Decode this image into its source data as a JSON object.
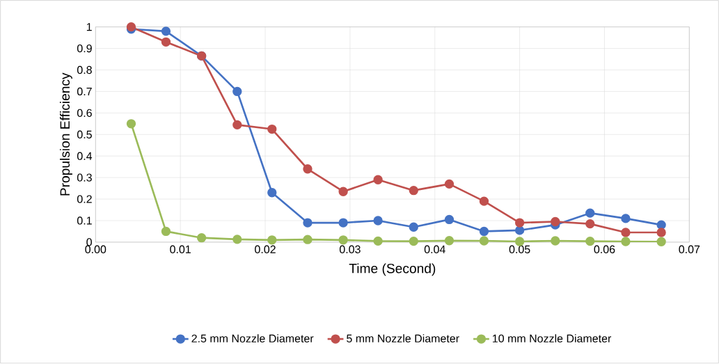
{
  "chart_data": {
    "type": "line",
    "xlabel": "Time (Second)",
    "ylabel": "Propulsion Efficiency",
    "xlim": [
      0,
      0.07
    ],
    "ylim": [
      0,
      1
    ],
    "xticks": [
      {
        "value": 0,
        "label": "0.00"
      },
      {
        "value": 0.01,
        "label": "0.01"
      },
      {
        "value": 0.02,
        "label": "0.02"
      },
      {
        "value": 0.03,
        "label": "0.03"
      },
      {
        "value": 0.04,
        "label": "0.04"
      },
      {
        "value": 0.05,
        "label": "0.05"
      },
      {
        "value": 0.06,
        "label": "0.06"
      },
      {
        "value": 0.07,
        "label": "0.07"
      }
    ],
    "yticks": [
      0,
      0.1,
      0.2,
      0.3,
      0.4,
      0.5,
      0.6,
      0.7,
      0.8,
      0.9,
      1
    ],
    "x": [
      0.0042,
      0.0083,
      0.0125,
      0.0167,
      0.0208,
      0.025,
      0.0292,
      0.0333,
      0.0375,
      0.0417,
      0.0458,
      0.05,
      0.0542,
      0.0583,
      0.0625,
      0.0667
    ],
    "series": [
      {
        "name": "2.5 mm Nozzle Diameter",
        "color": "#4472c4",
        "values": [
          0.99,
          0.98,
          0.865,
          0.7,
          0.23,
          0.09,
          0.09,
          0.1,
          0.07,
          0.105,
          0.05,
          0.055,
          0.08,
          0.135,
          0.11,
          0.08
        ]
      },
      {
        "name": "5 mm Nozzle Diameter",
        "color": "#c0504d",
        "values": [
          1.0,
          0.93,
          0.865,
          0.545,
          0.525,
          0.34,
          0.235,
          0.29,
          0.24,
          0.27,
          0.19,
          0.09,
          0.095,
          0.085,
          0.045,
          0.045
        ]
      },
      {
        "name": "10 mm Nozzle Diameter",
        "color": "#9bbb59",
        "values": [
          0.55,
          0.05,
          0.02,
          0.013,
          0.01,
          0.012,
          0.01,
          0.005,
          0.004,
          0.007,
          0.006,
          0.003,
          0.006,
          0.004,
          0.003,
          0.002
        ]
      }
    ],
    "grid": true,
    "legend": "bottom",
    "marker": "circle",
    "line_style": "solid"
  }
}
